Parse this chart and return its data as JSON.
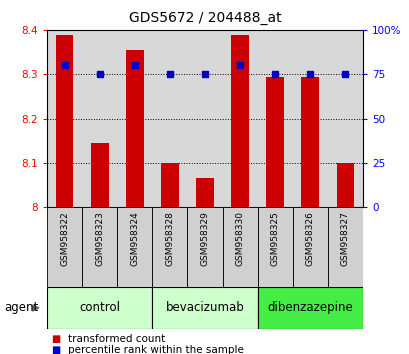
{
  "title": "GDS5672 / 204488_at",
  "samples": [
    "GSM958322",
    "GSM958323",
    "GSM958324",
    "GSM958328",
    "GSM958329",
    "GSM958330",
    "GSM958325",
    "GSM958326",
    "GSM958327"
  ],
  "bar_values": [
    8.39,
    8.145,
    8.355,
    8.1,
    8.065,
    8.39,
    8.295,
    8.295,
    8.1
  ],
  "percentile_values": [
    80,
    75,
    80,
    75,
    75,
    80,
    75,
    75,
    75
  ],
  "y_min": 8.0,
  "y_max": 8.4,
  "y_ticks": [
    8.0,
    8.1,
    8.2,
    8.3,
    8.4
  ],
  "y_tick_labels": [
    "8",
    "8.1",
    "8.2",
    "8.3",
    "8.4"
  ],
  "right_y_ticks": [
    0,
    25,
    50,
    75,
    100
  ],
  "right_y_tick_labels": [
    "0",
    "25",
    "50",
    "75",
    "100%"
  ],
  "grid_lines": [
    8.1,
    8.2,
    8.3
  ],
  "groups": [
    {
      "label": "control",
      "start": 0,
      "end": 3,
      "color": "#ccffcc"
    },
    {
      "label": "bevacizumab",
      "start": 3,
      "end": 6,
      "color": "#ccffcc"
    },
    {
      "label": "dibenzazepine",
      "start": 6,
      "end": 9,
      "color": "#44ee44"
    }
  ],
  "bar_color": "#cc0000",
  "dot_color": "#0000cc",
  "bar_width": 0.5,
  "legend_items": [
    {
      "label": "transformed count",
      "color": "#cc0000"
    },
    {
      "label": "percentile rank within the sample",
      "color": "#0000cc"
    }
  ],
  "agent_label": "agent",
  "plot_bg_color": "#d8d8d8",
  "sample_box_color": "#d0d0d0",
  "title_fontsize": 10,
  "tick_fontsize": 7.5,
  "sample_fontsize": 6.5,
  "group_fontsize": 8.5,
  "legend_fontsize": 7.5
}
